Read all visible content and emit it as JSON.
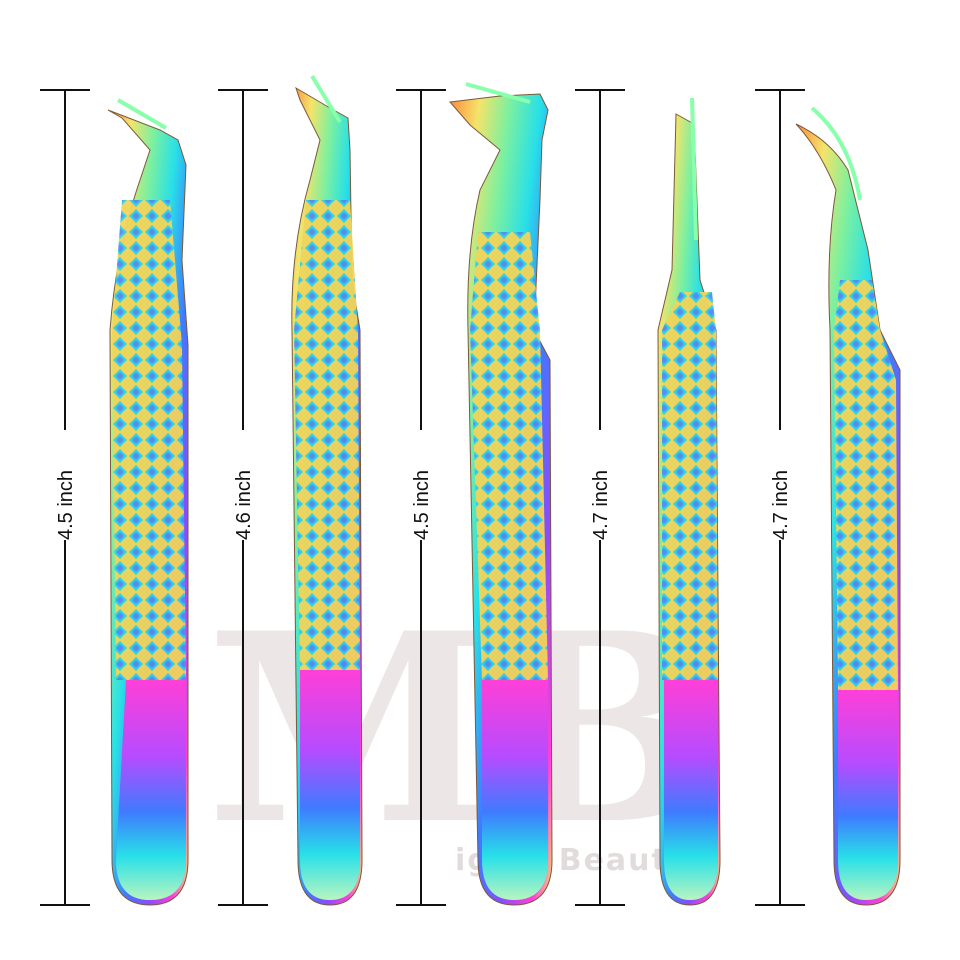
{
  "measurements": [
    {
      "label": "4.5 inch",
      "tip": "angled"
    },
    {
      "label": "4.6 inch",
      "tip": "angled"
    },
    {
      "label": "4.5 inch",
      "tip": "l-shaped"
    },
    {
      "label": "4.7 inch",
      "tip": "straight"
    },
    {
      "label": "4.7 inch",
      "tip": "curved"
    }
  ],
  "watermark": {
    "monogram": "MB",
    "text": "igma Beauty"
  },
  "colors": {
    "line": "#111111",
    "iridescent": [
      "#ff3fd8",
      "#8a4bff",
      "#3f7bff",
      "#28e0e8",
      "#7cf0a0",
      "#f3e46a",
      "#ff8a3d"
    ]
  }
}
